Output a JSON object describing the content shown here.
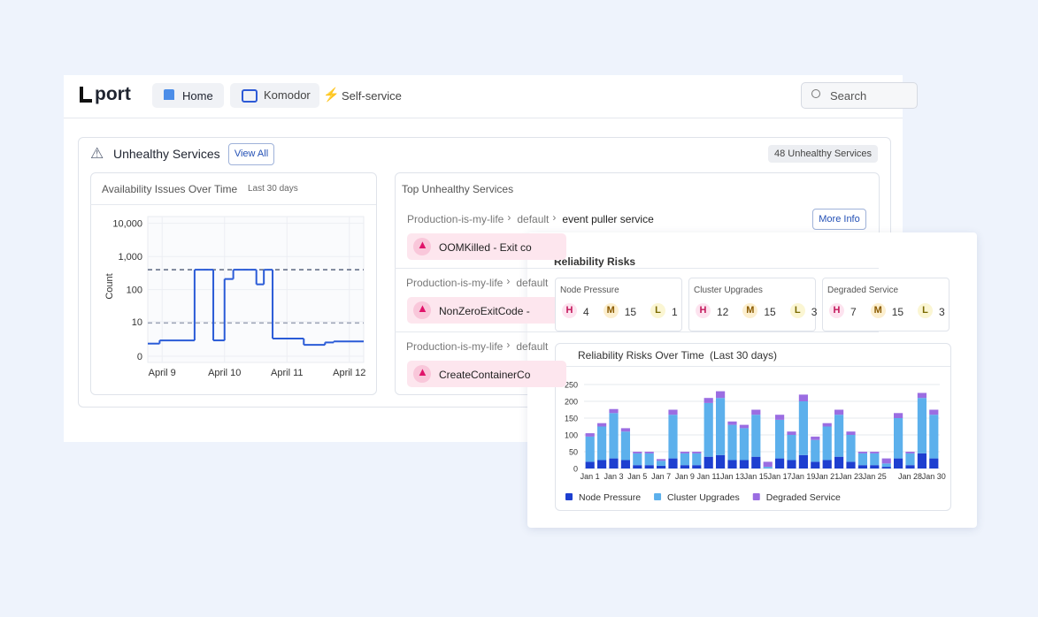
{
  "nav": {
    "logo": "port",
    "items": [
      "Home",
      "Komodor",
      "Self-service"
    ],
    "search": "Search"
  },
  "unhealthy": {
    "title": "Unhealthy Services",
    "view_all": "View All",
    "badge": "48 Unhealthy Services"
  },
  "top_unhealthy": {
    "title": "Top Unhealthy Services",
    "more_info": "More Info",
    "rows": [
      {
        "path": [
          "Production-is-my-life",
          "default",
          "event puller service"
        ],
        "error": "OOMKilled - Exit co"
      },
      {
        "path": [
          "Production-is-my-life",
          "default"
        ],
        "error": "NonZeroExitCode -"
      },
      {
        "path": [
          "Production-is-my-life",
          "default"
        ],
        "error": "CreateContainerCo"
      }
    ]
  },
  "risks": {
    "title": "Reliability Risks",
    "levels": [
      "H",
      "M",
      "L"
    ],
    "cards": [
      {
        "name": "Node Pressure",
        "counts": [
          4,
          15,
          1
        ]
      },
      {
        "name": "Cluster Upgrades",
        "counts": [
          12,
          15,
          3
        ]
      },
      {
        "name": "Degraded Service",
        "counts": [
          7,
          15,
          3
        ]
      }
    ]
  },
  "chart_data": [
    {
      "type": "line",
      "step": "post",
      "title": "Availability Issues Over Time",
      "subtitle": "Last 30 days",
      "y_label": "Count",
      "yscale": "log1p",
      "color": "#2a5bd7",
      "grid": true,
      "x": [
        8.77,
        8.96,
        9.52,
        9.82,
        10.0,
        10.14,
        10.51,
        10.63,
        10.77,
        11.27,
        11.61,
        11.75
      ],
      "values": [
        1.4,
        2,
        400,
        2,
        210,
        400,
        145,
        400,
        2.4,
        1.2,
        1.6,
        1.8
      ],
      "thresholds": [
        400,
        9
      ],
      "xlim": [
        8.77,
        12.23
      ],
      "xticks": [
        {
          "value": 9,
          "label": "April 9"
        },
        {
          "value": 10,
          "label": "April 10"
        },
        {
          "value": 11,
          "label": "April 11"
        },
        {
          "value": 12,
          "label": "April 12"
        }
      ],
      "ylim": [
        0,
        16000
      ],
      "yticks": [
        {
          "value": 10000,
          "label": "10,000"
        },
        {
          "value": 1000,
          "label": "1,000"
        },
        100,
        10,
        0
      ]
    },
    {
      "type": "stacked_bar",
      "title": "Reliability Risks Over Time",
      "subtitle": "(Last 30 days)",
      "legend": "bottom",
      "categories": [
        "Jan 1",
        null,
        "Jan 3",
        null,
        "Jan 5",
        null,
        "Jan 7",
        null,
        "Jan 9",
        null,
        "Jan 11",
        null,
        "Jan 13",
        null,
        "Jan 15",
        null,
        "Jan 17",
        null,
        "Jan 19",
        null,
        "Jan 21",
        null,
        "Jan 23",
        null,
        "Jan 25",
        null,
        null,
        "Jan 28",
        null,
        "Jan 30"
      ],
      "series": [
        {
          "name": "Node Pressure",
          "color": "#1d3fd0",
          "values": [
            20,
            25,
            30,
            25,
            10,
            10,
            8,
            30,
            10,
            10,
            35,
            40,
            25,
            25,
            35,
            0,
            30,
            25,
            40,
            20,
            25,
            35,
            20,
            10,
            10,
            5,
            30,
            10,
            45,
            30
          ]
        },
        {
          "name": "Cluster Upgrades",
          "color": "#5cb0ec",
          "values": [
            75,
            100,
            135,
            85,
            35,
            35,
            15,
            130,
            35,
            35,
            160,
            170,
            105,
            95,
            125,
            5,
            115,
            75,
            160,
            65,
            100,
            125,
            80,
            35,
            35,
            10,
            120,
            35,
            165,
            130
          ]
        },
        {
          "name": "Degraded Service",
          "color": "#9b6de2",
          "values": [
            10,
            10,
            12,
            10,
            5,
            5,
            5,
            15,
            5,
            5,
            15,
            20,
            10,
            10,
            15,
            15,
            15,
            10,
            20,
            10,
            10,
            15,
            10,
            5,
            5,
            15,
            15,
            5,
            15,
            15
          ]
        }
      ],
      "ylim": [
        0,
        250
      ],
      "yticks": [
        0,
        50,
        100,
        150,
        200,
        250
      ]
    }
  ]
}
